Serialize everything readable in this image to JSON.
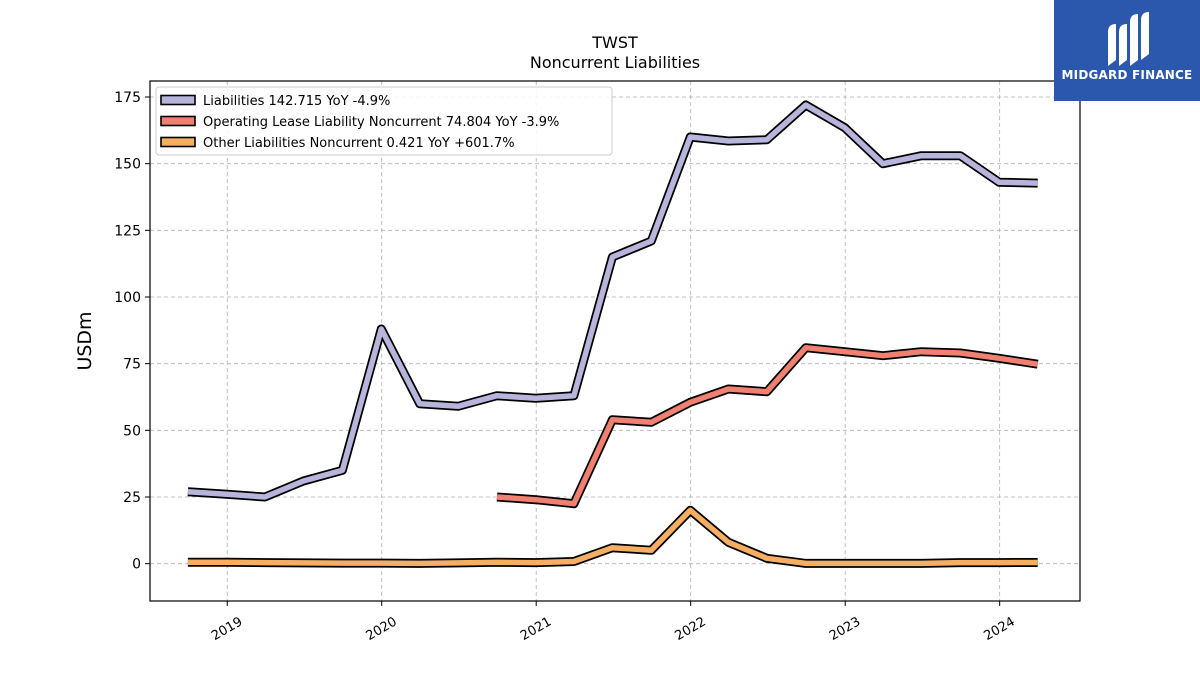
{
  "logo": {
    "brand": "MIDGARD FINANCE",
    "icon": "midgard-finance-logo-icon",
    "color": "#2b58ad"
  },
  "chart_data": {
    "type": "line",
    "title": "TWST",
    "subtitle": "Noncurrent  Liabilities",
    "xlabel": "",
    "ylabel": "USDm",
    "ylim": [
      -14,
      181
    ],
    "xlim": [
      2018.5,
      2024.52
    ],
    "yticks": [
      0,
      25,
      50,
      75,
      100,
      125,
      150,
      175
    ],
    "xticks": [
      "2019",
      "2020",
      "2021",
      "2022",
      "2023",
      "2024"
    ],
    "grid": true,
    "legend_position": "top-left",
    "series": [
      {
        "name": "Liabilities  142.715 YoY -4.9%",
        "color": "#b8b5dd",
        "x": [
          "2018-09-30",
          "2018-12-31",
          "2019-03-31",
          "2019-06-30",
          "2019-09-30",
          "2019-12-31",
          "2020-03-31",
          "2020-06-30",
          "2020-09-30",
          "2020-12-31",
          "2021-03-31",
          "2021-06-30",
          "2021-09-30",
          "2021-12-31",
          "2022-03-31",
          "2022-06-30",
          "2022-09-30",
          "2022-12-31",
          "2023-03-31",
          "2023-06-30",
          "2023-09-30",
          "2023-12-31",
          "2024-03-31"
        ],
        "y": [
          27,
          26,
          25,
          31,
          35,
          88,
          60,
          59,
          63,
          62,
          63,
          115,
          121,
          160,
          158.5,
          159,
          172,
          163.5,
          150,
          153,
          153,
          143,
          142.7
        ]
      },
      {
        "name": "Operating Lease Liability Noncurrent  74.804 YoY -3.9%",
        "color": "#f08070",
        "x": [
          "2020-09-30",
          "2020-12-31",
          "2021-03-31",
          "2021-06-30",
          "2021-09-30",
          "2021-12-31",
          "2022-03-31",
          "2022-06-30",
          "2022-09-30",
          "2022-12-31",
          "2023-03-31",
          "2023-06-30",
          "2023-09-30",
          "2023-12-31",
          "2024-03-31"
        ],
        "y": [
          25,
          24,
          22.5,
          54,
          53,
          60.5,
          65.5,
          64.5,
          81,
          79.5,
          78,
          79.5,
          79,
          77,
          74.8
        ]
      },
      {
        "name": "Other Liabilities Noncurrent  0.421 YoY +601.7%",
        "color": "#f5ae62",
        "x": [
          "2018-09-30",
          "2018-12-31",
          "2019-03-31",
          "2019-06-30",
          "2019-09-30",
          "2019-12-31",
          "2020-03-31",
          "2020-06-30",
          "2020-09-30",
          "2020-12-31",
          "2021-03-31",
          "2021-06-30",
          "2021-09-30",
          "2021-12-31",
          "2022-03-31",
          "2022-06-30",
          "2022-09-30",
          "2022-12-31",
          "2023-03-31",
          "2023-06-30",
          "2023-09-30",
          "2023-12-31",
          "2024-03-31"
        ],
        "y": [
          0.5,
          0.5,
          0.4,
          0.3,
          0.2,
          0.2,
          0.1,
          0.3,
          0.5,
          0.4,
          0.8,
          6,
          5,
          20,
          8,
          2,
          0.1,
          0.1,
          0.1,
          0.1,
          0.4,
          0.4,
          0.42
        ]
      }
    ]
  }
}
